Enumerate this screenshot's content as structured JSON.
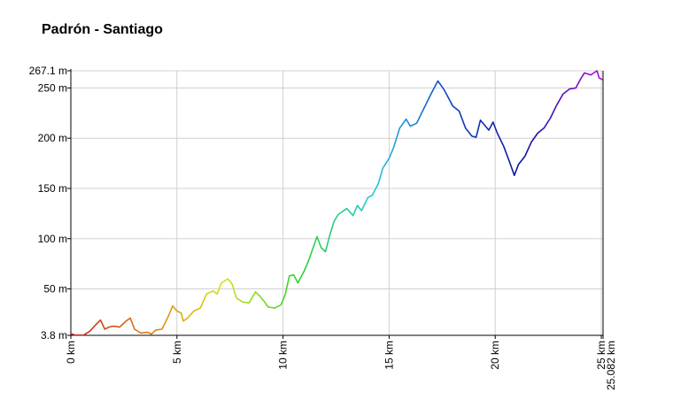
{
  "chart_data": {
    "type": "line",
    "title": "Padrón - Santiago",
    "xlabel": "",
    "ylabel": "",
    "xlim": [
      0,
      25.082
    ],
    "ylim": [
      3.8,
      267.1
    ],
    "grid": true,
    "legend": "none",
    "x_ticks": [
      0,
      5,
      10,
      15,
      20,
      25,
      25.082
    ],
    "x_tick_labels": [
      "0 km",
      "5 km",
      "10 km",
      "15 km",
      "20 km",
      "25 km",
      "25.082 km"
    ],
    "y_ticks": [
      3.8,
      50,
      100,
      150,
      200,
      250,
      267.1
    ],
    "y_tick_labels": [
      "3.8 m",
      "50 m",
      "100 m",
      "150 m",
      "200 m",
      "250 m",
      "267.1 m"
    ],
    "color_gradient": [
      "#c81e1e",
      "#e07a10",
      "#d8e018",
      "#2cd22c",
      "#20c8e0",
      "#1040c0",
      "#1010a0",
      "#b010e0"
    ],
    "series": [
      {
        "name": "",
        "points": [
          [
            0.0,
            5.5
          ],
          [
            0.2,
            4.0
          ],
          [
            0.6,
            4.0
          ],
          [
            0.9,
            8.0
          ],
          [
            1.2,
            15.0
          ],
          [
            1.4,
            19.0
          ],
          [
            1.6,
            10.0
          ],
          [
            1.8,
            12.0
          ],
          [
            2.0,
            13.0
          ],
          [
            2.3,
            12.0
          ],
          [
            2.6,
            18.0
          ],
          [
            2.8,
            21.0
          ],
          [
            3.0,
            10.0
          ],
          [
            3.3,
            6.0
          ],
          [
            3.6,
            7.0
          ],
          [
            3.8,
            5.0
          ],
          [
            4.0,
            9.0
          ],
          [
            4.3,
            10.0
          ],
          [
            4.6,
            23.0
          ],
          [
            4.8,
            33.0
          ],
          [
            5.0,
            28.0
          ],
          [
            5.2,
            26.0
          ],
          [
            5.3,
            18.0
          ],
          [
            5.5,
            21.0
          ],
          [
            5.8,
            28.0
          ],
          [
            6.1,
            31.0
          ],
          [
            6.4,
            45.0
          ],
          [
            6.7,
            48.0
          ],
          [
            6.9,
            45.0
          ],
          [
            7.1,
            56.0
          ],
          [
            7.4,
            60.0
          ],
          [
            7.6,
            55.0
          ],
          [
            7.8,
            41.0
          ],
          [
            8.1,
            37.0
          ],
          [
            8.4,
            36.0
          ],
          [
            8.7,
            47.0
          ],
          [
            8.9,
            43.0
          ],
          [
            9.1,
            38.0
          ],
          [
            9.3,
            32.0
          ],
          [
            9.6,
            31.0
          ],
          [
            9.9,
            34.0
          ],
          [
            10.1,
            44.0
          ],
          [
            10.3,
            63.0
          ],
          [
            10.5,
            64.0
          ],
          [
            10.7,
            56.0
          ],
          [
            11.0,
            68.0
          ],
          [
            11.2,
            78.0
          ],
          [
            11.4,
            90.0
          ],
          [
            11.6,
            102.0
          ],
          [
            11.8,
            91.0
          ],
          [
            12.0,
            87.0
          ],
          [
            12.2,
            103.0
          ],
          [
            12.4,
            117.0
          ],
          [
            12.6,
            124.0
          ],
          [
            12.8,
            127.0
          ],
          [
            13.0,
            130.0
          ],
          [
            13.3,
            123.0
          ],
          [
            13.5,
            133.0
          ],
          [
            13.7,
            128.0
          ],
          [
            14.0,
            141.0
          ],
          [
            14.2,
            143.0
          ],
          [
            14.5,
            155.0
          ],
          [
            14.7,
            170.0
          ],
          [
            15.0,
            180.0
          ],
          [
            15.2,
            190.0
          ],
          [
            15.5,
            210.0
          ],
          [
            15.8,
            219.0
          ],
          [
            16.0,
            212.0
          ],
          [
            16.3,
            215.0
          ],
          [
            16.6,
            228.0
          ],
          [
            17.0,
            245.0
          ],
          [
            17.3,
            257.0
          ],
          [
            17.6,
            248.0
          ],
          [
            17.8,
            240.0
          ],
          [
            18.0,
            232.0
          ],
          [
            18.3,
            227.0
          ],
          [
            18.6,
            210.0
          ],
          [
            18.9,
            202.0
          ],
          [
            19.1,
            201.0
          ],
          [
            19.3,
            218.0
          ],
          [
            19.5,
            213.0
          ],
          [
            19.7,
            208.0
          ],
          [
            19.9,
            216.0
          ],
          [
            20.1,
            205.0
          ],
          [
            20.4,
            192.0
          ],
          [
            20.7,
            175.0
          ],
          [
            20.9,
            163.0
          ],
          [
            21.1,
            174.0
          ],
          [
            21.4,
            182.0
          ],
          [
            21.7,
            196.0
          ],
          [
            22.0,
            205.0
          ],
          [
            22.3,
            210.0
          ],
          [
            22.6,
            220.0
          ],
          [
            22.9,
            233.0
          ],
          [
            23.2,
            244.0
          ],
          [
            23.5,
            249.0
          ],
          [
            23.8,
            250.0
          ],
          [
            24.0,
            258.0
          ],
          [
            24.2,
            265.0
          ],
          [
            24.5,
            263.0
          ],
          [
            24.8,
            267.1
          ],
          [
            24.9,
            260.0
          ],
          [
            25.082,
            258.0
          ]
        ]
      }
    ]
  }
}
